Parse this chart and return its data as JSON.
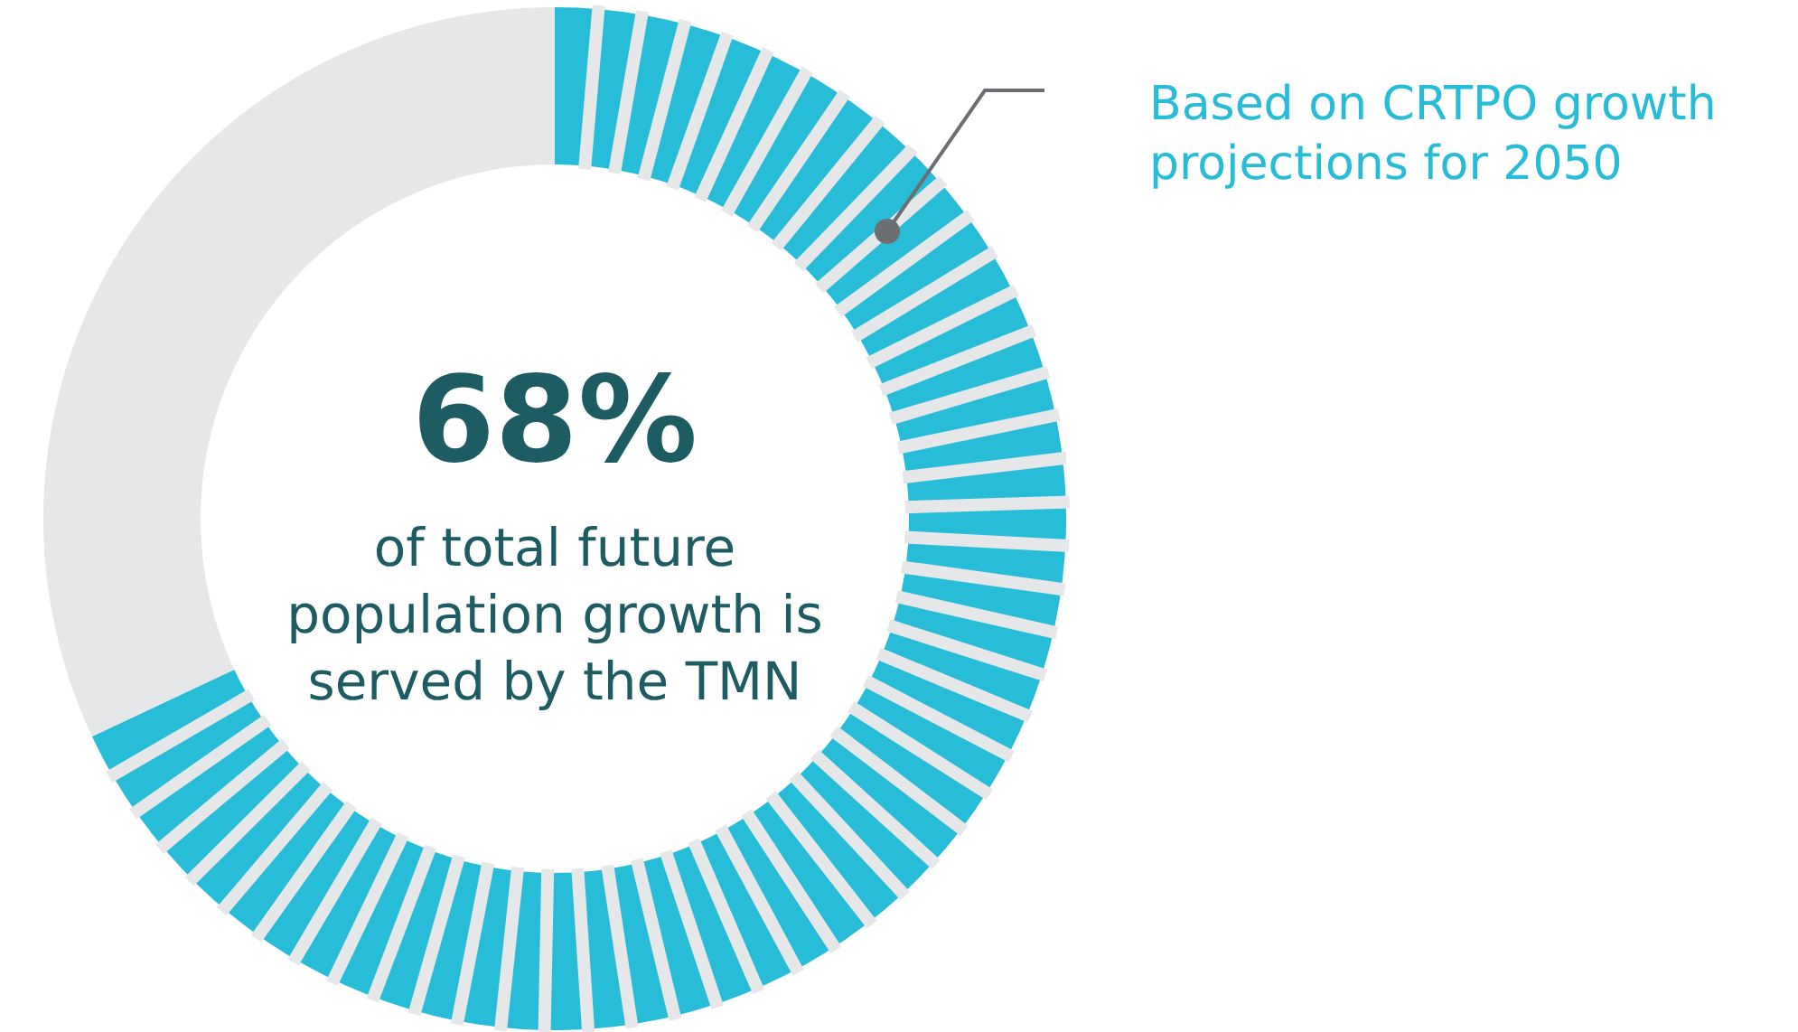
{
  "chart_data": {
    "type": "donut",
    "categories": [
      null,
      null
    ],
    "values": [
      68,
      32
    ],
    "colors": [
      "#27bcd8",
      "#e6e7e8"
    ],
    "title": "68%",
    "subtitle": "of total future population growth is served by the TMN",
    "annotations": [
      "Based on CRTPO growth projections for 2050"
    ]
  }
}
